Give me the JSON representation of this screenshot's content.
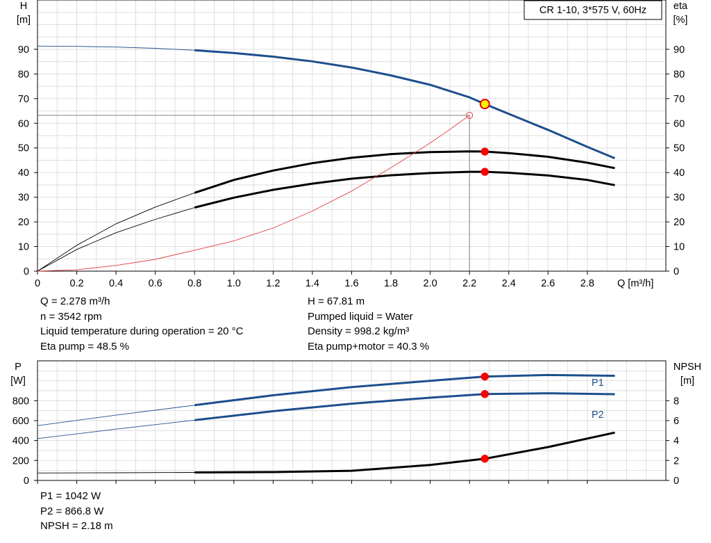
{
  "chart_data": [
    {
      "type": "line",
      "title": "CR 1-10, 3*575 V, 60Hz",
      "xlabel": "Q [m³/h]",
      "ylabel": [
        "H",
        "[m]"
      ],
      "y2label": [
        "eta",
        "[%]"
      ],
      "xlim": [
        0,
        3.2
      ],
      "ylim": [
        0,
        110
      ],
      "y2lim": [
        0,
        110
      ],
      "grid": true,
      "x_ticks": [
        0,
        0.2,
        0.4,
        0.6,
        0.8,
        1.0,
        1.2,
        1.4,
        1.6,
        1.8,
        2.0,
        2.2,
        2.4,
        2.6,
        2.8
      ],
      "x_tick_labels": [
        "0",
        "0.2",
        "0.4",
        "0.6",
        "0.8",
        "1.0",
        "1.2",
        "1.4",
        "1.6",
        "1.8",
        "2.0",
        "2.2",
        "2.4",
        "2.6",
        "2.8"
      ],
      "y_ticks": [
        0,
        10,
        20,
        30,
        40,
        50,
        60,
        70,
        80,
        90
      ],
      "series": [
        {
          "color": "#1c4f8c",
          "axis": "left",
          "operating_range": [
            0.8,
            2.94
          ],
          "x": [
            0,
            0.2,
            0.4,
            0.6,
            0.8,
            1.0,
            1.2,
            1.4,
            1.6,
            1.8,
            2.0,
            2.2,
            2.278,
            2.4,
            2.6,
            2.8,
            2.94
          ],
          "y": [
            91.3,
            91.2,
            90.9,
            90.4,
            89.6,
            88.5,
            87.0,
            85.1,
            82.6,
            79.4,
            75.6,
            70.5,
            67.8,
            63.8,
            57.3,
            50.4,
            45.8
          ]
        },
        {
          "color": "#000000",
          "axis": "right",
          "operating_range": [
            0.8,
            2.94
          ],
          "x": [
            0,
            0.2,
            0.4,
            0.6,
            0.8,
            1.0,
            1.2,
            1.4,
            1.6,
            1.8,
            2.0,
            2.2,
            2.278,
            2.4,
            2.6,
            2.8,
            2.94
          ],
          "y": [
            0,
            10.5,
            19.2,
            26.0,
            31.8,
            37.0,
            40.8,
            43.8,
            46.0,
            47.5,
            48.3,
            48.6,
            48.5,
            47.9,
            46.4,
            44.0,
            41.8
          ]
        },
        {
          "color": "#000000",
          "axis": "right",
          "operating_range": [
            0.8,
            2.94
          ],
          "x": [
            0,
            0.2,
            0.4,
            0.6,
            0.8,
            1.0,
            1.2,
            1.4,
            1.6,
            1.8,
            2.0,
            2.2,
            2.278,
            2.4,
            2.6,
            2.8,
            2.94
          ],
          "y": [
            0,
            8.8,
            15.6,
            21.0,
            25.8,
            29.8,
            33.0,
            35.5,
            37.5,
            38.9,
            39.8,
            40.3,
            40.3,
            39.9,
            38.8,
            37.0,
            34.9
          ]
        },
        {
          "color": "#e04040",
          "axis": "left",
          "x": [
            0,
            0.2,
            0.4,
            0.6,
            0.8,
            1.0,
            1.2,
            1.4,
            1.6,
            1.8,
            2.0,
            2.1,
            2.2
          ],
          "y": [
            0,
            0.6,
            2.3,
            4.8,
            8.5,
            12.3,
            17.5,
            24.4,
            32.5,
            42.0,
            52.0,
            57.5,
            63.2
          ]
        }
      ],
      "markers": [
        {
          "x": 2.278,
          "y": 67.81,
          "style": "yellow-circle"
        },
        {
          "x": 2.278,
          "y": 48.5,
          "style": "red-dot"
        },
        {
          "x": 2.278,
          "y": 40.3,
          "style": "red-dot"
        },
        {
          "x": 2.2,
          "y": 63.2,
          "style": "red-hollow"
        }
      ],
      "guide_lines": {
        "vertical_x": 2.2,
        "horizontal_y": 63.2
      }
    },
    {
      "type": "line",
      "xlim": [
        0,
        3.2
      ],
      "ylim": [
        0,
        1200
      ],
      "y2lim": [
        0,
        12
      ],
      "grid": true,
      "ylabel": [
        "P",
        "[W]"
      ],
      "y2label": [
        "NPSH",
        "[m]"
      ],
      "y_ticks": [
        0,
        200,
        400,
        600,
        800
      ],
      "y2_ticks": [
        0,
        2,
        4,
        6,
        8
      ],
      "series": [
        {
          "name": "P1",
          "color": "#1c4f8c",
          "axis": "left",
          "operating_range": [
            0.8,
            2.94
          ],
          "x": [
            0,
            0.4,
            0.8,
            1.2,
            1.6,
            2.0,
            2.278,
            2.6,
            2.94
          ],
          "y": [
            550,
            655,
            755,
            855,
            937,
            1000,
            1042,
            1058,
            1050
          ]
        },
        {
          "name": "P2",
          "color": "#1c4f8c",
          "axis": "left",
          "operating_range": [
            0.8,
            2.94
          ],
          "x": [
            0,
            0.4,
            0.8,
            1.2,
            1.6,
            2.0,
            2.278,
            2.6,
            2.94
          ],
          "y": [
            420,
            515,
            605,
            695,
            770,
            830,
            866.8,
            875,
            865
          ]
        },
        {
          "color": "#000000",
          "axis": "right",
          "operating_range": [
            0.8,
            2.94
          ],
          "x": [
            0,
            0.4,
            0.8,
            1.2,
            1.6,
            2.0,
            2.278,
            2.6,
            2.94
          ],
          "y": [
            0.75,
            0.77,
            0.8,
            0.84,
            0.97,
            1.55,
            2.18,
            3.35,
            4.8
          ]
        }
      ],
      "markers": [
        {
          "x": 2.278,
          "y": 1042,
          "style": "red-dot"
        },
        {
          "x": 2.278,
          "y": 866.8,
          "style": "red-dot"
        },
        {
          "x": 2.278,
          "y": 2.18,
          "axis": "right",
          "style": "red-dot"
        }
      ]
    }
  ],
  "info_top": {
    "q": "Q = 2.278 m³/h",
    "n": "n = 3542 rpm",
    "temp": "Liquid temperature during operation = 20 °C",
    "eta_pump": "Eta pump = 48.5 %",
    "h": "H = 67.81 m",
    "liquid": "Pumped liquid = Water",
    "density": "Density = 998.2 kg/m³",
    "eta_total": "Eta pump+motor = 40.3 %"
  },
  "info_bottom": {
    "p1": "P1 = 1042 W",
    "p2": "P2 = 866.8 W",
    "npsh": "NPSH = 2.18 m"
  }
}
